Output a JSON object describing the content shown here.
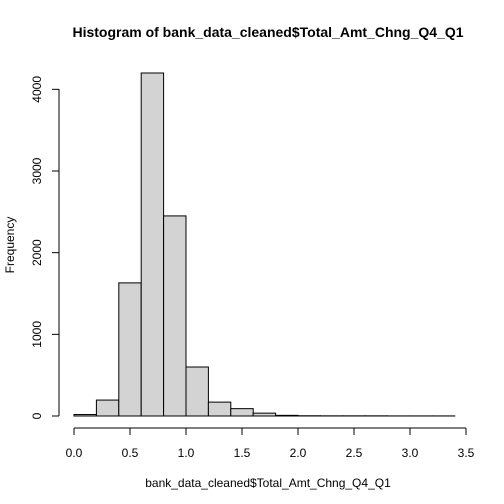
{
  "chart_data": {
    "type": "bar",
    "title": "Histogram of bank_data_cleaned$Total_Amt_Chng_Q4_Q1",
    "xlabel": "bank_data_cleaned$Total_Amt_Chng_Q4_Q1",
    "ylabel": "Frequency",
    "bin_edges": [
      0.0,
      0.2,
      0.4,
      0.6,
      0.8,
      1.0,
      1.2,
      1.4,
      1.6,
      1.8,
      2.0,
      2.2,
      2.4,
      2.6,
      2.8,
      3.0,
      3.2,
      3.4
    ],
    "values": [
      18,
      195,
      1630,
      4200,
      2450,
      600,
      170,
      90,
      35,
      8,
      3,
      2,
      2,
      2,
      1,
      1,
      1
    ],
    "xlim": [
      0,
      3.5
    ],
    "ylim": [
      0,
      4200
    ],
    "x_ticks": [
      0.0,
      0.5,
      1.0,
      1.5,
      2.0,
      2.5,
      3.0,
      3.5
    ],
    "x_tick_labels": [
      "0.0",
      "0.5",
      "1.0",
      "1.5",
      "2.0",
      "2.5",
      "3.0",
      "3.5"
    ],
    "y_ticks": [
      0,
      1000,
      2000,
      3000,
      4000
    ],
    "y_tick_labels": [
      "0",
      "1000",
      "2000",
      "3000",
      "4000"
    ],
    "grid": false,
    "legend": "none",
    "bar_fill": "#d3d3d3",
    "bar_stroke": "#000000"
  }
}
